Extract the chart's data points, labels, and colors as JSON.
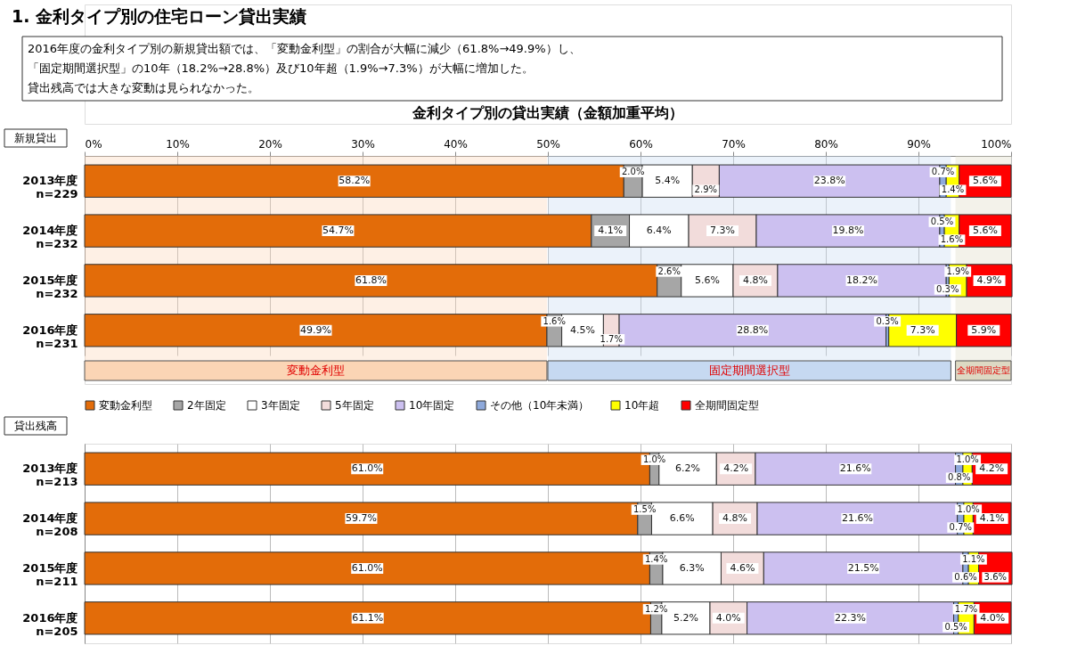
{
  "chart_data": [
    {
      "type": "bar",
      "orientation": "horizontal",
      "stacked": true,
      "title": "1. 金利タイプ別の住宅ローン貸出実績",
      "annotations": [
        "　2016年度の金利タイプ別の新規貸出額では、「変動金利型」の割合が大幅に減少（61.8%→49.9%）し、",
        "「固定期間選択型」の10年（18.2%→28.8%）及び10年超（1.9%→7.3%）が大幅に増加した。",
        "　貸出残高では大きな変動は見られなかった。"
      ],
      "subtitle": "金利タイプ別の貸出実績（金額加重平均）",
      "ylabel": "新規貸出",
      "categories": [
        "2013年度\nn=229",
        "2014年度\nn=232",
        "2015年度\nn=232",
        "2016年度\nn=231"
      ],
      "series": [
        {
          "name": "変動金利型",
          "color": "#e36c09",
          "values": [
            58.2,
            54.7,
            61.8,
            49.9
          ],
          "value_labels": [
            "58.2%",
            "54.7%",
            "61.8%",
            "49.9%"
          ]
        },
        {
          "name": "2年固定",
          "color": "#a6a6a6",
          "values": [
            2.0,
            4.1,
            2.6,
            1.6
          ],
          "value_labels": [
            "2.0%",
            "4.1%",
            "2.6%",
            "1.6%"
          ]
        },
        {
          "name": "3年固定",
          "color": "#ffffff",
          "values": [
            5.4,
            6.4,
            5.6,
            4.5
          ],
          "value_labels": [
            "5.4%",
            "6.4%",
            "5.6%",
            "4.5%"
          ]
        },
        {
          "name": "5年固定",
          "color": "#f2dcdb",
          "values": [
            2.9,
            7.3,
            4.8,
            1.7
          ],
          "value_labels": [
            "2.9%",
            "7.3%",
            "4.8%",
            "1.7%"
          ]
        },
        {
          "name": "10年固定",
          "color": "#ccc0f0",
          "values": [
            23.8,
            19.8,
            18.2,
            28.8
          ],
          "value_labels": [
            "23.8%",
            "19.8%",
            "18.2%",
            "28.8%"
          ]
        },
        {
          "name": "その他（10年未満）",
          "color": "#8ea9db",
          "values": [
            0.7,
            0.5,
            0.3,
            0.3
          ],
          "value_labels": [
            "0.7%",
            "0.5%",
            "0.3%",
            "0.3%"
          ]
        },
        {
          "name": "10年超",
          "color": "#ffff00",
          "values": [
            1.4,
            1.6,
            1.9,
            7.3
          ],
          "value_labels": [
            "1.4%",
            "1.6%",
            "1.9%",
            "7.3%"
          ]
        },
        {
          "name": "全期間固定型",
          "color": "#ff0000",
          "values": [
            5.6,
            5.6,
            4.9,
            5.9
          ],
          "value_labels": [
            "5.6%",
            "5.6%",
            "4.9%",
            "5.9%"
          ]
        }
      ],
      "xlim": [
        0,
        100
      ],
      "xticks": [
        {
          "value": 0,
          "label": "0%"
        },
        {
          "value": 10,
          "label": "10%"
        },
        {
          "value": 20,
          "label": "20%"
        },
        {
          "value": 30,
          "label": "30%"
        },
        {
          "value": 40,
          "label": "40%"
        },
        {
          "value": 50,
          "label": "50%"
        },
        {
          "value": 60,
          "label": "60%"
        },
        {
          "value": 70,
          "label": "70%"
        },
        {
          "value": 80,
          "label": "80%"
        },
        {
          "value": 90,
          "label": "90%"
        },
        {
          "value": 100,
          "label": "100%"
        }
      ],
      "grid": "x",
      "bands": [
        {
          "axis": "x",
          "from": 0,
          "to": 49.9,
          "label": "変動金利型",
          "color": "#fbd5b5"
        },
        {
          "axis": "x",
          "from": 50,
          "to": 93.5,
          "label": "固定期間選択型",
          "color": "#c6d9f1"
        },
        {
          "axis": "x",
          "from": 94,
          "to": 100,
          "label": "全期間固定型",
          "color": "#ddd9c3"
        }
      ],
      "legend": "bottom"
    },
    {
      "type": "bar",
      "orientation": "horizontal",
      "stacked": true,
      "ylabel": "貸出残高",
      "categories": [
        "2013年度\nn=213",
        "2014年度\nn=208",
        "2015年度\nn=211",
        "2016年度\nn=205"
      ],
      "series": [
        {
          "color": "#e36c09",
          "values": [
            61.0,
            59.7,
            61.0,
            61.1
          ],
          "value_labels": [
            "61.0%",
            "59.7%",
            "61.0%",
            "61.1%"
          ]
        },
        {
          "color": "#a6a6a6",
          "values": [
            1.0,
            1.5,
            1.4,
            1.2
          ],
          "value_labels": [
            "1.0%",
            "1.5%",
            "1.4%",
            "1.2%"
          ]
        },
        {
          "color": "#ffffff",
          "values": [
            6.2,
            6.6,
            6.3,
            5.2
          ],
          "value_labels": [
            "6.2%",
            "6.6%",
            "6.3%",
            "5.2%"
          ]
        },
        {
          "color": "#f2dcdb",
          "values": [
            4.2,
            4.8,
            4.6,
            4.0
          ],
          "value_labels": [
            "4.2%",
            "4.8%",
            "4.6%",
            "4.0%"
          ]
        },
        {
          "color": "#ccc0f0",
          "values": [
            21.6,
            21.6,
            21.5,
            22.3
          ],
          "value_labels": [
            "21.6%",
            "21.6%",
            "21.5%",
            "22.3%"
          ]
        },
        {
          "color": "#8ea9db",
          "values": [
            0.8,
            0.7,
            0.6,
            0.5
          ],
          "value_labels": [
            "0.8%",
            "0.7%",
            "0.6%",
            "0.5%"
          ]
        },
        {
          "color": "#ffff00",
          "values": [
            1.0,
            1.0,
            1.1,
            1.7
          ],
          "value_labels": [
            "1.0%",
            "1.0%",
            "1.1%",
            "1.7%"
          ]
        },
        {
          "color": "#ff0000",
          "values": [
            4.2,
            4.1,
            3.6,
            4.0
          ],
          "value_labels": [
            "4.2%",
            "4.1%",
            "3.6%",
            "4.0%"
          ]
        }
      ],
      "xlim": [
        0,
        100
      ],
      "xticks": [
        0,
        10,
        20,
        30,
        40,
        50,
        60,
        70,
        80,
        90,
        100
      ],
      "tick_labels": "y",
      "grid": "x"
    }
  ]
}
